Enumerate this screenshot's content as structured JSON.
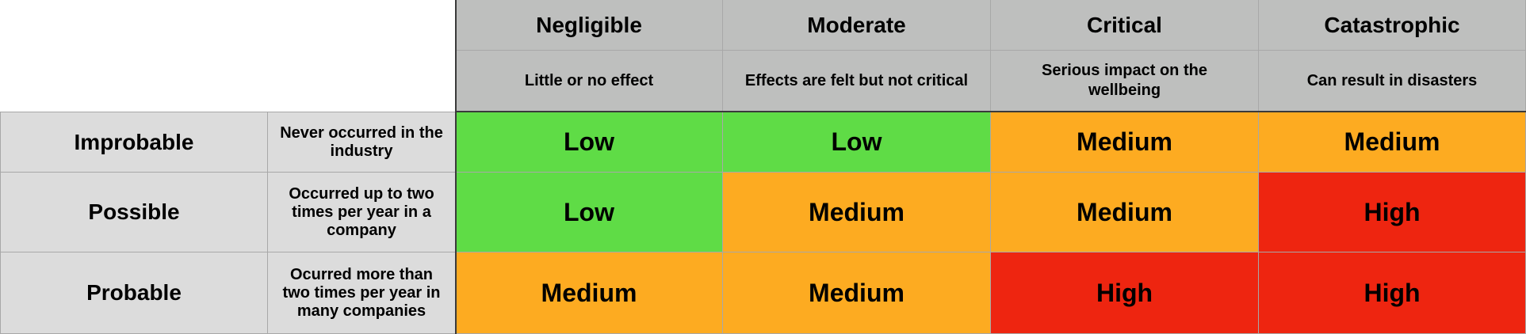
{
  "colors": {
    "header_bg": "#bebfbe",
    "row_header_bg": "#dcdcdc",
    "Low": "#5fdc46",
    "Medium": "#fdab21",
    "High": "#ee2510"
  },
  "columns": [
    {
      "title": "Negligible",
      "description": "Little or no effect"
    },
    {
      "title": "Moderate",
      "description": "Effects are felt but not critical"
    },
    {
      "title": "Critical",
      "description": "Serious impact on the wellbeing"
    },
    {
      "title": "Catastrophic",
      "description": "Can result in disasters"
    }
  ],
  "rows": [
    {
      "title": "Improbable",
      "description": "Never occurred in the industry",
      "cells": [
        "Low",
        "Low",
        "Medium",
        "Medium"
      ]
    },
    {
      "title": "Possible",
      "description": "Occurred up to two times per year in a company",
      "cells": [
        "Low",
        "Medium",
        "Medium",
        "High"
      ]
    },
    {
      "title": "Probable",
      "description": "Ocurred more than two times per year in many companies",
      "cells": [
        "Medium",
        "Medium",
        "High",
        "High"
      ]
    }
  ]
}
